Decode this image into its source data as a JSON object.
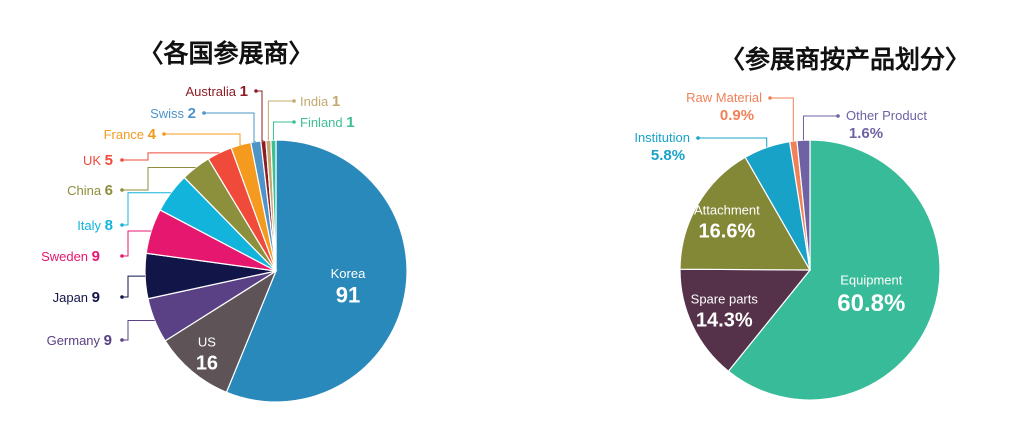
{
  "chart_data": [
    {
      "type": "pie",
      "title": "〈各国参展商〉",
      "slices": [
        {
          "label": "Korea",
          "value": 91,
          "value_text": "91",
          "color": "#2a89bb"
        },
        {
          "label": "US",
          "value": 16,
          "value_text": "16",
          "color": "#5e5457"
        },
        {
          "label": "Germany",
          "value": 9,
          "value_text": "9",
          "color": "#5a4186"
        },
        {
          "label": "Japan",
          "value": 9,
          "value_text": "9",
          "color": "#121548"
        },
        {
          "label": "Sweden",
          "value": 9,
          "value_text": "9",
          "color": "#e6176f"
        },
        {
          "label": "Italy",
          "value": 8,
          "value_text": "8",
          "color": "#12b4dc"
        },
        {
          "label": "China",
          "value": 6,
          "value_text": "6",
          "color": "#8c8f3b"
        },
        {
          "label": "UK",
          "value": 5,
          "value_text": "5",
          "color": "#ef4a3a"
        },
        {
          "label": "France",
          "value": 4,
          "value_text": "4",
          "color": "#f39a1f"
        },
        {
          "label": "Swiss",
          "value": 2,
          "value_text": "2",
          "color": "#4f94c9"
        },
        {
          "label": "Australia",
          "value": 1,
          "value_text": "1",
          "color": "#8e1c25"
        },
        {
          "label": "India",
          "value": 1,
          "value_text": "1",
          "color": "#c3a96f"
        },
        {
          "label": "Finland",
          "value": 1,
          "value_text": "1",
          "color": "#3dbf96"
        }
      ]
    },
    {
      "type": "pie",
      "title": "〈参展商按产品划分〉",
      "slices": [
        {
          "label": "Equipment",
          "value": 60.8,
          "value_text": "60.8%",
          "color": "#37bb98"
        },
        {
          "label": "Spare parts",
          "value": 14.3,
          "value_text": "14.3%",
          "color": "#55324a"
        },
        {
          "label": "Attachment",
          "value": 16.6,
          "value_text": "16.6%",
          "color": "#838837"
        },
        {
          "label": "Institution",
          "value": 5.8,
          "value_text": "5.8%",
          "color": "#18a2c8"
        },
        {
          "label": "Raw Material",
          "value": 0.9,
          "value_text": "0.9%",
          "color": "#f08158"
        },
        {
          "label": "Other Product",
          "value": 1.6,
          "value_text": "1.6%",
          "color": "#6f62a4"
        }
      ]
    }
  ]
}
